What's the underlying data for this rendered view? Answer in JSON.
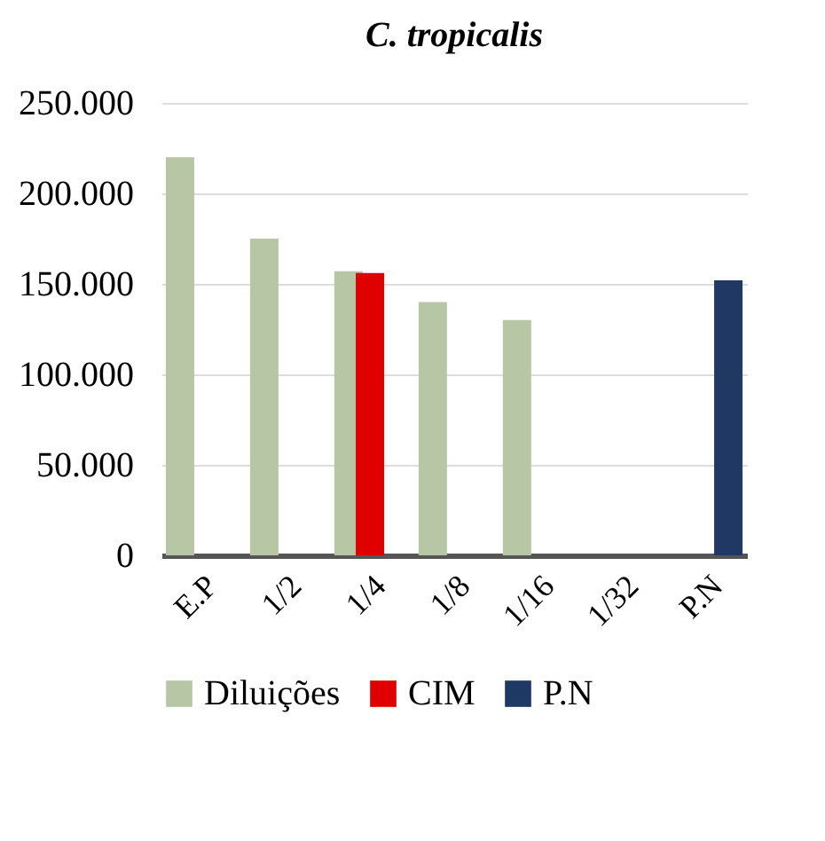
{
  "chart_data": {
    "type": "bar",
    "title": "C. tropicalis",
    "categories": [
      "E.P",
      "1/2",
      "1/4",
      "1/8",
      "1/16",
      "1/32",
      "P.N"
    ],
    "series": [
      {
        "name": "Diluições",
        "color": "#b7c6a4",
        "values": [
          220000,
          175000,
          157000,
          140000,
          130000,
          null,
          null
        ]
      },
      {
        "name": "CIM",
        "color": "#e00000",
        "values": [
          null,
          null,
          156000,
          null,
          null,
          null,
          null
        ]
      },
      {
        "name": "P.N",
        "color": "#1f3864",
        "values": [
          null,
          null,
          null,
          null,
          null,
          null,
          152000
        ]
      }
    ],
    "ylim": [
      0,
      250000
    ],
    "yticks": [
      {
        "value": 0,
        "label": "0"
      },
      {
        "value": 50000,
        "label": "50.000"
      },
      {
        "value": 100000,
        "label": "100.000"
      },
      {
        "value": 150000,
        "label": "150.000"
      },
      {
        "value": 200000,
        "label": "200.000"
      },
      {
        "value": 250000,
        "label": "250.000"
      }
    ],
    "grid": "y",
    "legend": "bottom"
  }
}
